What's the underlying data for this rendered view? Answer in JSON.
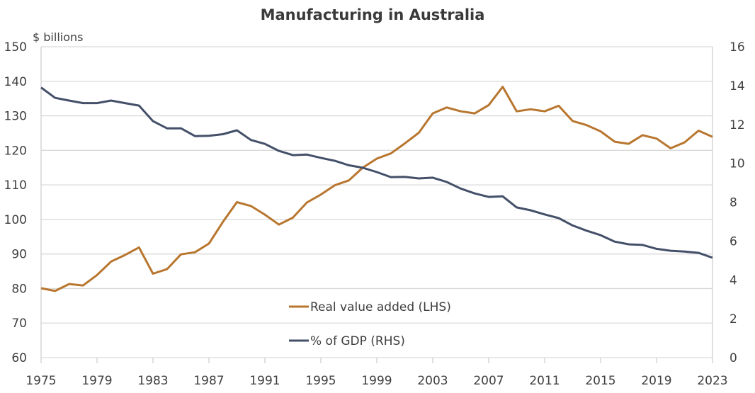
{
  "chart_data": {
    "type": "line",
    "title": "Manufacturing in Australia",
    "left_axis": {
      "unit_label": "$ billions",
      "range": [
        60,
        150
      ],
      "ticks": [
        60,
        70,
        80,
        90,
        100,
        110,
        120,
        130,
        140,
        150
      ]
    },
    "right_axis": {
      "unit_label": "",
      "range": [
        0,
        16
      ],
      "ticks": [
        0,
        2,
        4,
        6,
        8,
        10,
        12,
        14,
        16
      ]
    },
    "x_axis": {
      "range": [
        1975,
        2023
      ],
      "tick_labels": [
        "1975",
        "1979",
        "1983",
        "1987",
        "1991",
        "1995",
        "1999",
        "2003",
        "2007",
        "2011",
        "2015",
        "2019",
        "2023"
      ]
    },
    "grid": true,
    "legend_position": "bottom-center-inside",
    "x": [
      1975,
      1976,
      1977,
      1978,
      1979,
      1980,
      1981,
      1982,
      1983,
      1984,
      1985,
      1986,
      1987,
      1988,
      1989,
      1990,
      1991,
      1992,
      1993,
      1994,
      1995,
      1996,
      1997,
      1998,
      1999,
      2000,
      2001,
      2002,
      2003,
      2004,
      2005,
      2006,
      2007,
      2008,
      2009,
      2010,
      2011,
      2012,
      2013,
      2014,
      2015,
      2016,
      2017,
      2018,
      2019,
      2020,
      2021,
      2022,
      2023
    ],
    "series": [
      {
        "name": "Real value added (LHS)",
        "axis": "left",
        "color": "#B8762F",
        "values": [
          80.1,
          79.3,
          81.3,
          80.9,
          83.9,
          87.8,
          89.7,
          91.9,
          84.3,
          85.6,
          89.9,
          90.5,
          93.0,
          99.3,
          105.0,
          103.9,
          101.4,
          98.5,
          100.5,
          104.9,
          107.2,
          109.9,
          111.3,
          115.0,
          117.6,
          119.1,
          122.0,
          125.1,
          130.7,
          132.4,
          131.3,
          130.7,
          133.1,
          138.4,
          131.3,
          131.9,
          131.3,
          132.9,
          128.5,
          127.3,
          125.5,
          122.5,
          121.9,
          124.4,
          123.4,
          120.6,
          122.3,
          125.7,
          123.9
        ]
      },
      {
        "name": "% of GDP (RHS)",
        "axis": "right",
        "color": "#445069",
        "values": [
          13.9,
          13.37,
          13.23,
          13.1,
          13.1,
          13.23,
          13.1,
          12.97,
          12.17,
          11.8,
          11.8,
          11.4,
          11.42,
          11.5,
          11.7,
          11.2,
          11.0,
          10.64,
          10.42,
          10.45,
          10.28,
          10.13,
          9.9,
          9.77,
          9.55,
          9.29,
          9.3,
          9.22,
          9.26,
          9.04,
          8.7,
          8.45,
          8.27,
          8.3,
          7.73,
          7.58,
          7.37,
          7.18,
          6.8,
          6.53,
          6.3,
          5.97,
          5.83,
          5.8,
          5.6,
          5.5,
          5.46,
          5.39,
          5.14
        ]
      }
    ]
  }
}
